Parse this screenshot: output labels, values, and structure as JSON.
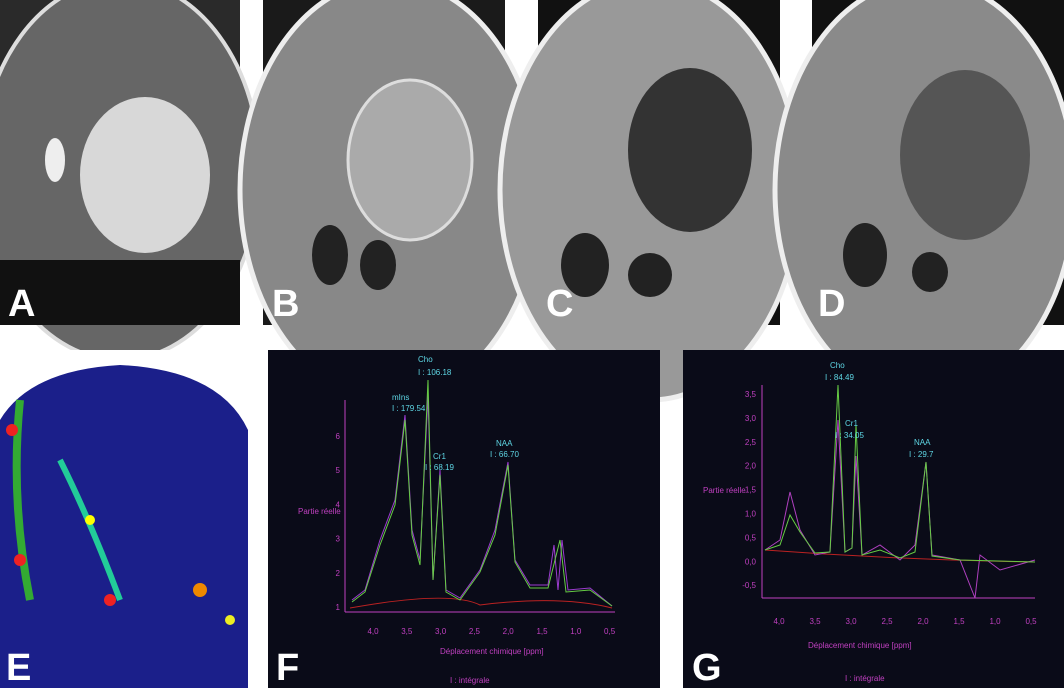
{
  "panel_labels": [
    "A",
    "B",
    "C",
    "D",
    "E",
    "F",
    "G"
  ],
  "spectrum_f": {
    "peaks": [
      {
        "name": "Cho",
        "integral": "I : 106.18"
      },
      {
        "name": "mIns",
        "integral": "I : 179.54"
      },
      {
        "name": "Cr1",
        "integral": "I : 68.19"
      },
      {
        "name": "NAA",
        "integral": "I : 66.70"
      }
    ],
    "y_axis_label": "Partie réelle",
    "x_axis_label": "Déplacement chimique [ppm]",
    "footer": "I : intégrale",
    "xticks": [
      "4,0",
      "3,5",
      "3,0",
      "2,5",
      "2,0",
      "1,5",
      "1,0",
      "0,5"
    ],
    "yticks": [
      "6",
      "5",
      "4",
      "3",
      "2",
      "1"
    ]
  },
  "spectrum_g": {
    "peaks": [
      {
        "name": "Cho",
        "integral": "I : 84.49"
      },
      {
        "name": "Cr1",
        "integral": "I : 34.05"
      },
      {
        "name": "NAA",
        "integral": "I : 29.7"
      }
    ],
    "y_axis_label": "Partie réelle",
    "x_axis_label": "Déplacement chimique [ppm]",
    "footer": "I : intégrale",
    "xticks": [
      "4,0",
      "3,5",
      "3,0",
      "2,5",
      "2,0",
      "1,5",
      "1,0",
      "0,5"
    ],
    "yticks": [
      "3,5",
      "3,0",
      "2,5",
      "2,0",
      "1,5",
      "1,0",
      "0,5",
      "0,0",
      "-0,5"
    ]
  }
}
